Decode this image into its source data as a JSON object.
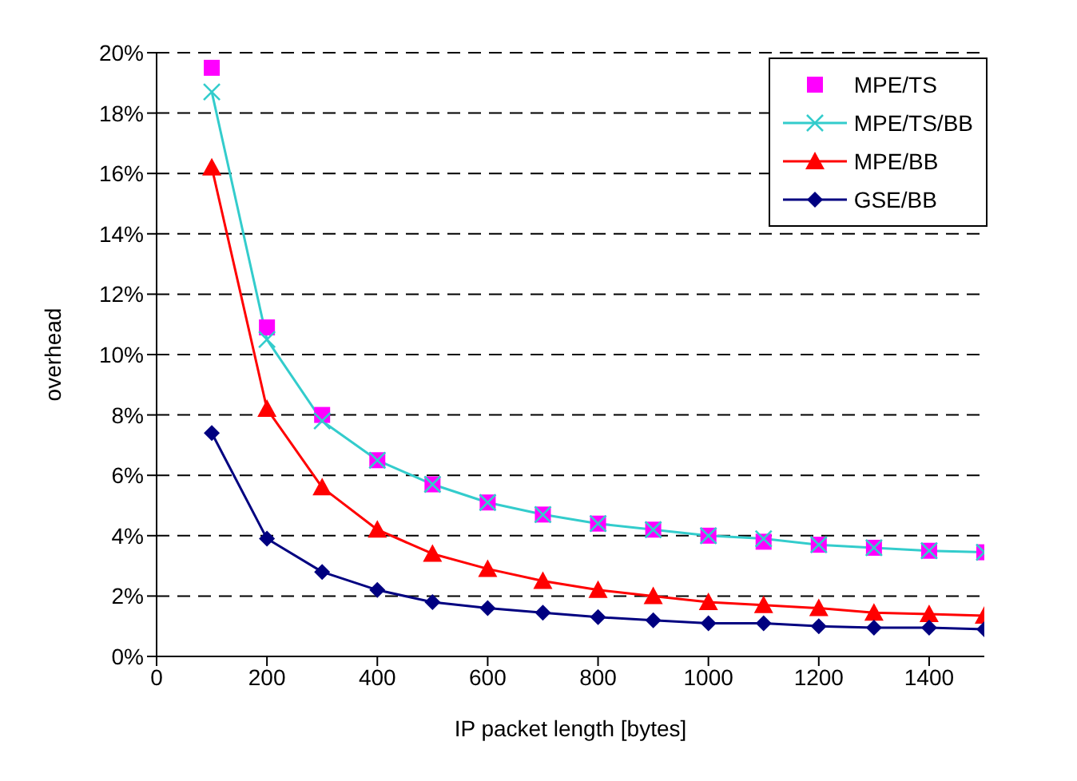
{
  "chart_data": {
    "type": "line",
    "xlabel": "IP packet length [bytes]",
    "ylabel": "overhead",
    "x": [
      100,
      200,
      300,
      400,
      500,
      600,
      700,
      800,
      900,
      1000,
      1100,
      1200,
      1300,
      1400,
      1500
    ],
    "series": [
      {
        "name": "MPE/TS",
        "type": "scatter",
        "marker": "square",
        "color": "#ff00ff",
        "values": [
          19.5,
          10.9,
          8.0,
          6.5,
          5.7,
          5.1,
          4.7,
          4.4,
          4.2,
          4.0,
          3.8,
          3.7,
          3.6,
          3.5,
          3.45
        ]
      },
      {
        "name": "MPE/TS/BB",
        "marker": "cross",
        "color": "#33cccc",
        "values": [
          18.7,
          10.5,
          7.8,
          6.5,
          5.7,
          5.1,
          4.7,
          4.4,
          4.2,
          4.0,
          3.9,
          3.7,
          3.6,
          3.5,
          3.45
        ]
      },
      {
        "name": "MPE/BB",
        "marker": "triangle",
        "color": "#ff0000",
        "values": [
          16.2,
          8.2,
          5.6,
          4.2,
          3.4,
          2.9,
          2.5,
          2.2,
          2.0,
          1.8,
          1.7,
          1.6,
          1.45,
          1.4,
          1.35
        ]
      },
      {
        "name": "GSE/BB",
        "marker": "diamond",
        "color": "#000080",
        "values": [
          7.4,
          3.9,
          2.8,
          2.2,
          1.8,
          1.6,
          1.45,
          1.3,
          1.2,
          1.1,
          1.1,
          1.0,
          0.95,
          0.95,
          0.9
        ]
      }
    ],
    "xlim": [
      0,
      1500
    ],
    "xticks": [
      0,
      200,
      400,
      600,
      800,
      1000,
      1200,
      1400
    ],
    "ylim": [
      0,
      20
    ],
    "yticks": [
      {
        "value": 0,
        "label": "0%"
      },
      {
        "value": 2,
        "label": "2%"
      },
      {
        "value": 4,
        "label": "4%"
      },
      {
        "value": 6,
        "label": "6%"
      },
      {
        "value": 8,
        "label": "8%"
      },
      {
        "value": 10,
        "label": "10%"
      },
      {
        "value": 12,
        "label": "12%"
      },
      {
        "value": 14,
        "label": "14%"
      },
      {
        "value": 16,
        "label": "16%"
      },
      {
        "value": 18,
        "label": "18%"
      },
      {
        "value": 20,
        "label": "20%"
      }
    ],
    "grid": "y",
    "legend": "top right",
    "line_style": "solid"
  }
}
